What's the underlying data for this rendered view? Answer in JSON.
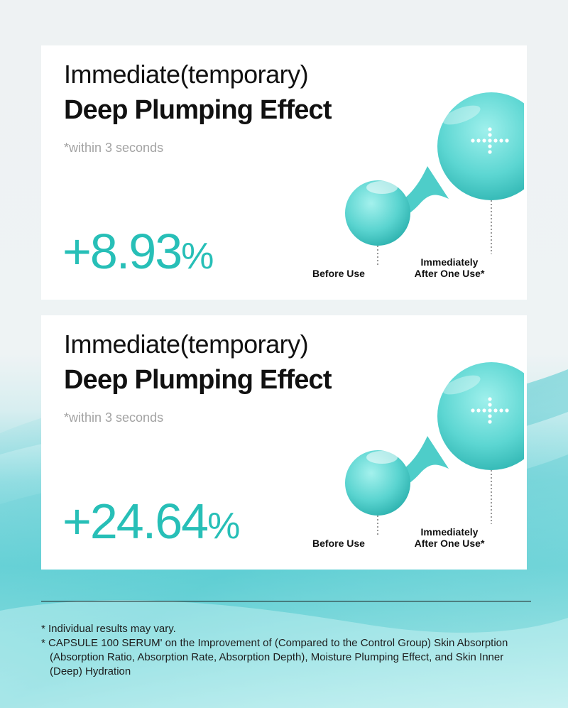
{
  "cards": [
    {
      "title_light": "Immediate(temporary)",
      "title_bold": "Deep Plumping Effect",
      "note": "*within 3 seconds",
      "value": "+8.93",
      "unit": "%",
      "label_before": "Before Use",
      "label_after_line1": "Immediately",
      "label_after_line2": "After One Use*"
    },
    {
      "title_light": "Immediate(temporary)",
      "title_bold": "Deep Plumping Effect",
      "note": "*within 3 seconds",
      "value": "+24.64",
      "unit": "%",
      "label_before": "Before Use",
      "label_after_line1": "Immediately",
      "label_after_line2": "After One Use*"
    }
  ],
  "footnotes": {
    "line1": "* Individual results may vary.",
    "line2": "* CAPSULE 100 SERUM' on the Improvement of (Compared to the Control Group) Skin Absorption (Absorption Ratio, Absorption Rate, Absorption Depth), Moisture Plumping Effect, and Skin Inner (Deep) Hydration"
  },
  "colors": {
    "accent": "#27bfb7",
    "droplet": "#5fd5d2",
    "droplet_dark": "#2fb7b4"
  }
}
